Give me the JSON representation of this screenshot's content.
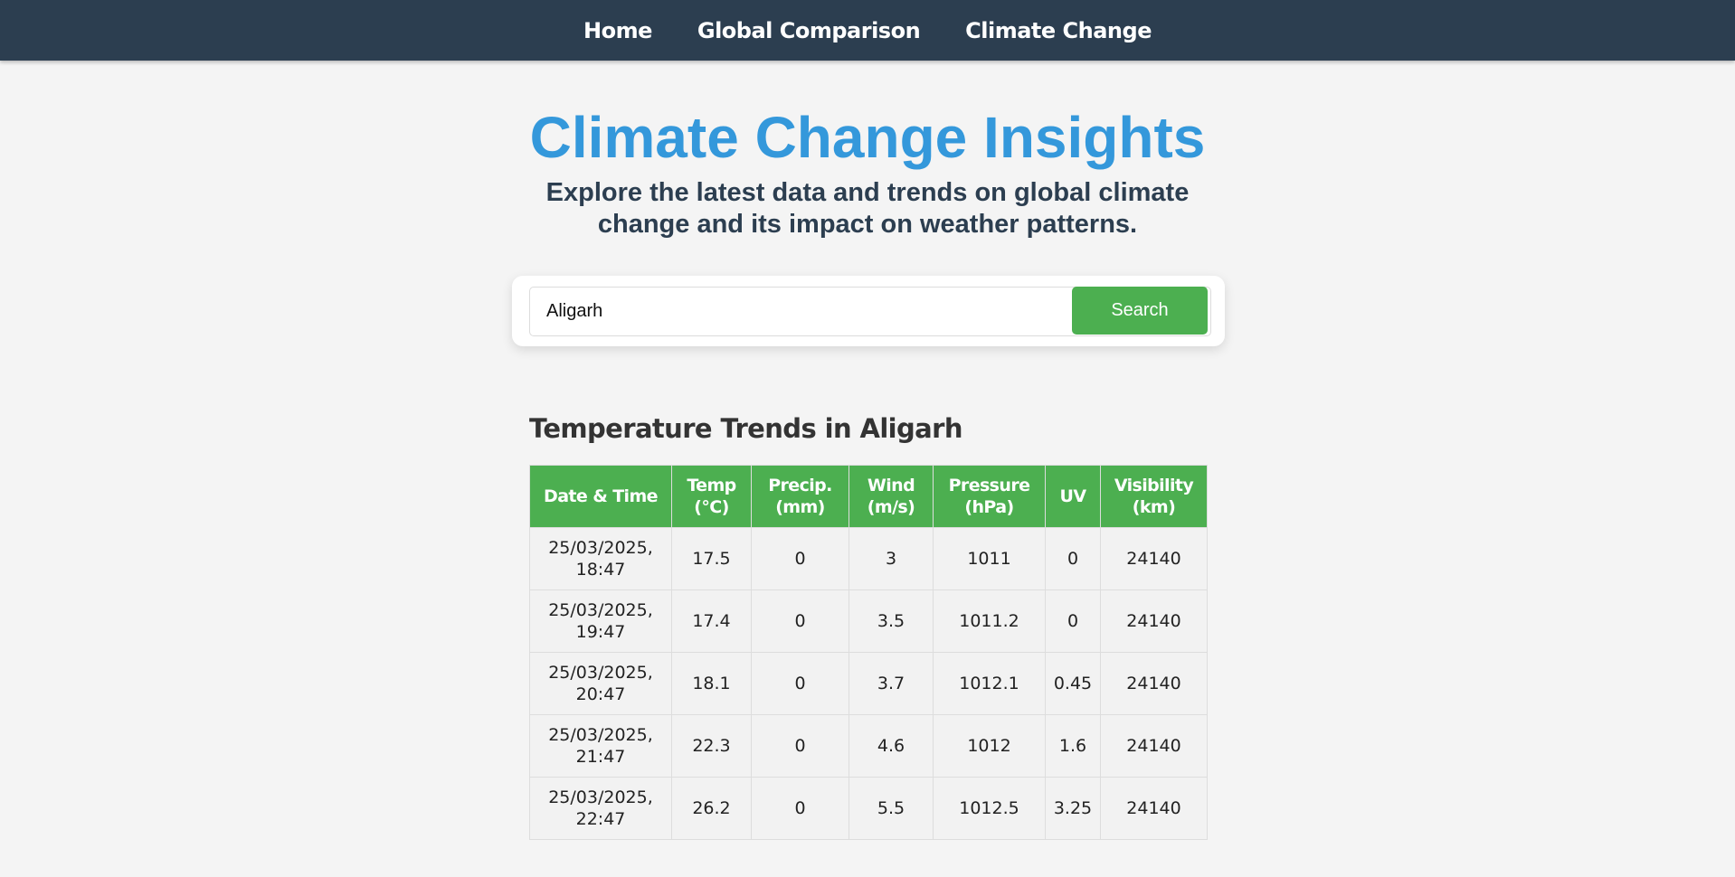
{
  "nav": {
    "items": [
      {
        "label": "Home"
      },
      {
        "label": "Global Comparison"
      },
      {
        "label": "Climate Change"
      }
    ]
  },
  "hero": {
    "title": "Climate Change Insights",
    "subtitle": "Explore the latest data and trends on global climate change and its impact on weather patterns."
  },
  "search": {
    "value": "Aligarh",
    "button_label": "Search"
  },
  "trends": {
    "heading": "Temperature Trends in Aligarh",
    "columns": [
      {
        "line1": "Date & Time",
        "line2": ""
      },
      {
        "line1": "Temp",
        "line2": "(°C)"
      },
      {
        "line1": "Precip.",
        "line2": "(mm)"
      },
      {
        "line1": "Wind",
        "line2": "(m/s)"
      },
      {
        "line1": "Pressure",
        "line2": "(hPa)"
      },
      {
        "line1": "UV",
        "line2": ""
      },
      {
        "line1": "Visibility",
        "line2": "(km)"
      }
    ],
    "rows": [
      {
        "date": "25/03/2025,",
        "time": "18:47",
        "temp": "17.5",
        "precip": "0",
        "wind": "3",
        "pressure": "1011",
        "uv": "0",
        "visibility": "24140"
      },
      {
        "date": "25/03/2025,",
        "time": "19:47",
        "temp": "17.4",
        "precip": "0",
        "wind": "3.5",
        "pressure": "1011.2",
        "uv": "0",
        "visibility": "24140"
      },
      {
        "date": "25/03/2025,",
        "time": "20:47",
        "temp": "18.1",
        "precip": "0",
        "wind": "3.7",
        "pressure": "1012.1",
        "uv": "0.45",
        "visibility": "24140"
      },
      {
        "date": "25/03/2025,",
        "time": "21:47",
        "temp": "22.3",
        "precip": "0",
        "wind": "4.6",
        "pressure": "1012",
        "uv": "1.6",
        "visibility": "24140"
      },
      {
        "date": "25/03/2025,",
        "time": "22:47",
        "temp": "26.2",
        "precip": "0",
        "wind": "5.5",
        "pressure": "1012.5",
        "uv": "3.25",
        "visibility": "24140"
      }
    ]
  }
}
